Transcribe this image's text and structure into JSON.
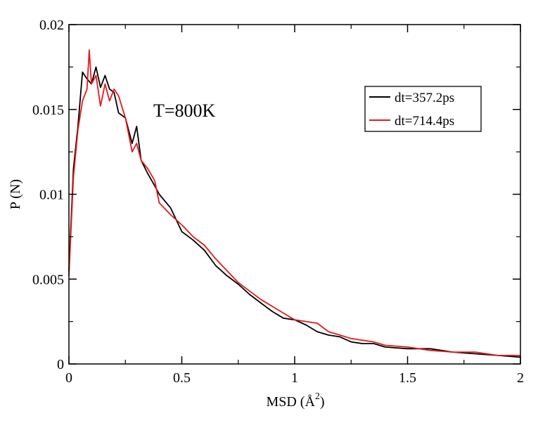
{
  "chart_data": {
    "type": "line",
    "title": "",
    "xlabel": "MSD (Å",
    "xlabel_superscript": "2",
    "xlabel_suffix": ")",
    "ylabel": "P (N)",
    "xlim": [
      0,
      2
    ],
    "ylim": [
      0,
      0.02
    ],
    "x_ticks": [
      0,
      0.5,
      1,
      1.5,
      2
    ],
    "x_tick_labels": [
      "0",
      "0.5",
      "1",
      "1.5",
      "2"
    ],
    "y_ticks": [
      0,
      0.005,
      0.01,
      0.015,
      0.02
    ],
    "y_tick_labels": [
      "0",
      "0.005",
      "0.01",
      "0.015",
      "0.02"
    ],
    "x_minor_step": 0.25,
    "y_minor_step": 0.0025,
    "grid": false,
    "legend_position": "top-right",
    "annotation": "T=800K",
    "series": [
      {
        "name": "dt=357.2ps",
        "color": "#000000",
        "x": [
          0,
          0.02,
          0.04,
          0.06,
          0.08,
          0.1,
          0.12,
          0.14,
          0.16,
          0.18,
          0.2,
          0.22,
          0.25,
          0.28,
          0.3,
          0.32,
          0.35,
          0.38,
          0.4,
          0.45,
          0.5,
          0.55,
          0.6,
          0.65,
          0.7,
          0.75,
          0.8,
          0.85,
          0.9,
          0.95,
          1.0,
          1.05,
          1.1,
          1.15,
          1.2,
          1.25,
          1.3,
          1.35,
          1.4,
          1.5,
          1.6,
          1.7,
          1.8,
          1.9,
          2.0
        ],
        "y": [
          0.0055,
          0.0115,
          0.014,
          0.0172,
          0.0168,
          0.0165,
          0.0175,
          0.0163,
          0.017,
          0.0162,
          0.016,
          0.0148,
          0.0145,
          0.013,
          0.014,
          0.012,
          0.0112,
          0.0105,
          0.01,
          0.0092,
          0.0078,
          0.0073,
          0.0067,
          0.0058,
          0.0052,
          0.0047,
          0.0041,
          0.0036,
          0.0031,
          0.0027,
          0.0026,
          0.0023,
          0.0019,
          0.0017,
          0.0016,
          0.0013,
          0.0012,
          0.0012,
          0.001,
          0.0009,
          0.0009,
          0.0007,
          0.0006,
          0.0005,
          0.0004
        ]
      },
      {
        "name": "dt=714.4ps",
        "color": "#e41a1c",
        "x": [
          0,
          0.02,
          0.04,
          0.06,
          0.08,
          0.09,
          0.1,
          0.12,
          0.14,
          0.16,
          0.18,
          0.2,
          0.22,
          0.25,
          0.28,
          0.3,
          0.32,
          0.35,
          0.38,
          0.4,
          0.45,
          0.5,
          0.55,
          0.6,
          0.65,
          0.7,
          0.75,
          0.8,
          0.85,
          0.9,
          0.95,
          1.0,
          1.05,
          1.1,
          1.15,
          1.2,
          1.25,
          1.3,
          1.35,
          1.4,
          1.5,
          1.6,
          1.7,
          1.8,
          1.9,
          2.0
        ],
        "y": [
          0.0052,
          0.011,
          0.0138,
          0.0155,
          0.0162,
          0.0185,
          0.0165,
          0.017,
          0.0152,
          0.0165,
          0.0155,
          0.0162,
          0.0158,
          0.0145,
          0.0125,
          0.013,
          0.012,
          0.0115,
          0.0108,
          0.0095,
          0.0088,
          0.0082,
          0.0075,
          0.007,
          0.0062,
          0.0055,
          0.0048,
          0.0043,
          0.0038,
          0.0034,
          0.003,
          0.0026,
          0.0025,
          0.0024,
          0.0019,
          0.0017,
          0.0015,
          0.0014,
          0.0013,
          0.0011,
          0.001,
          0.0008,
          0.0007,
          0.0007,
          0.0005,
          0.0005
        ]
      }
    ]
  }
}
